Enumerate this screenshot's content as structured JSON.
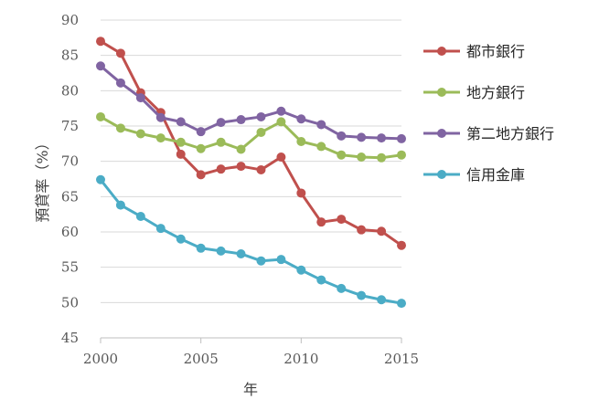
{
  "chart_data": {
    "type": "line",
    "xlabel": "年",
    "ylabel": "預貸率（%）",
    "xlim": [
      2000,
      2015
    ],
    "ylim": [
      45,
      90
    ],
    "xticks": [
      2000,
      2005,
      2010,
      2015
    ],
    "yticks": [
      45,
      50,
      55,
      60,
      65,
      70,
      75,
      80,
      85,
      90
    ],
    "grid": "horizontal",
    "legend_position": "right",
    "x": [
      2000,
      2001,
      2002,
      2003,
      2004,
      2005,
      2006,
      2007,
      2008,
      2009,
      2010,
      2011,
      2012,
      2013,
      2014,
      2015
    ],
    "series": [
      {
        "name": "都市銀行",
        "color": "#c0504d",
        "values": [
          87.0,
          85.3,
          79.7,
          76.9,
          71.0,
          68.1,
          68.9,
          69.3,
          68.8,
          70.6,
          65.5,
          61.4,
          61.8,
          60.3,
          60.1,
          58.1
        ]
      },
      {
        "name": "地方銀行",
        "color": "#9bbb59",
        "values": [
          76.3,
          74.7,
          73.9,
          73.3,
          72.7,
          71.8,
          72.7,
          71.7,
          74.1,
          75.6,
          72.8,
          72.1,
          70.9,
          70.6,
          70.5,
          70.9
        ]
      },
      {
        "name": "第二地方銀行",
        "color": "#8064a2",
        "values": [
          83.5,
          81.1,
          79.0,
          76.2,
          75.6,
          74.2,
          75.5,
          75.9,
          76.3,
          77.1,
          76.0,
          75.2,
          73.6,
          73.4,
          73.3,
          73.2
        ]
      },
      {
        "name": "信用金庫",
        "color": "#4bacc6",
        "values": [
          67.4,
          63.8,
          62.2,
          60.5,
          59.0,
          57.7,
          57.3,
          56.9,
          55.9,
          56.1,
          54.6,
          53.2,
          52.0,
          51.0,
          50.4,
          49.9
        ]
      }
    ]
  }
}
